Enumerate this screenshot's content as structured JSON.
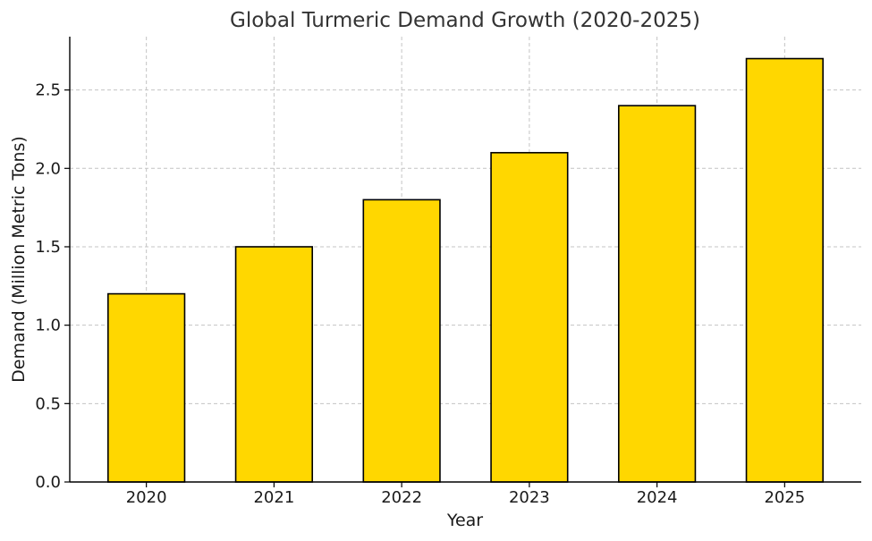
{
  "chart_data": {
    "type": "bar",
    "title": "Global Turmeric Demand Growth (2020-2025)",
    "xlabel": "Year",
    "ylabel": "Demand (Million Metric Tons)",
    "categories": [
      "2020",
      "2021",
      "2022",
      "2023",
      "2024",
      "2025"
    ],
    "values": [
      1.2,
      1.5,
      1.8,
      2.1,
      2.4,
      2.7
    ],
    "ylim": [
      0,
      2.84
    ],
    "yticks": [
      0.0,
      0.5,
      1.0,
      1.5,
      2.0,
      2.5
    ],
    "ytick_labels": [
      "0.0",
      "0.5",
      "1.0",
      "1.5",
      "2.0",
      "2.5"
    ],
    "grid": true,
    "bar_color": "#FFD700",
    "edge_color": "#000000"
  }
}
